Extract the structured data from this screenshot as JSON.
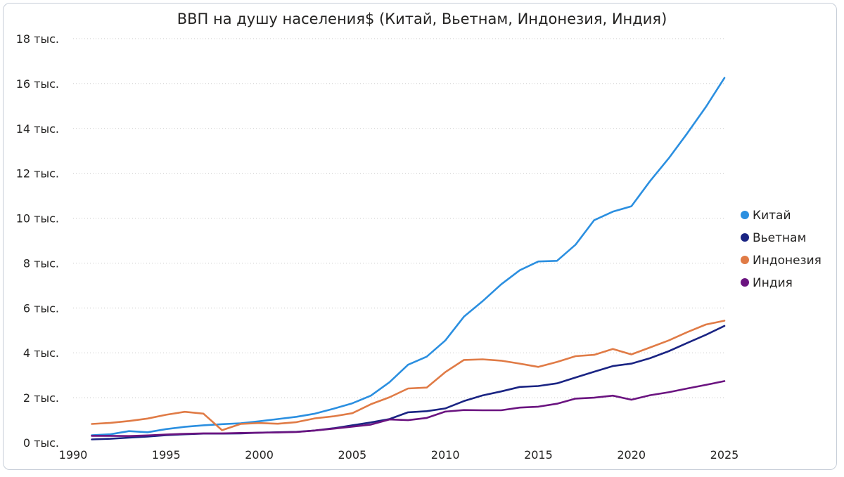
{
  "chart_data": {
    "type": "line",
    "title": "ВВП на душу населения$ (Китай, Вьетнам, Индонезия, Индия)",
    "xlabel": "",
    "ylabel": "",
    "xlim": [
      1990,
      2025
    ],
    "ylim": [
      0,
      18000
    ],
    "x_ticks": [
      "1990",
      "1995",
      "2000",
      "2005",
      "2010",
      "2015",
      "2020",
      "2025"
    ],
    "y_ticks": [
      "0 тыс.",
      "2 тыс.",
      "4 тыс.",
      "6 тыс.",
      "8 тыс.",
      "10 тыс.",
      "12 тыс.",
      "14 тыс.",
      "16 тыс.",
      "18 тыс."
    ],
    "grid": "horizontal dotted",
    "legend_position": "right",
    "x": [
      1991,
      1992,
      1993,
      1994,
      1995,
      1996,
      1997,
      1998,
      1999,
      2000,
      2001,
      2002,
      2003,
      2004,
      2005,
      2006,
      2007,
      2008,
      2009,
      2010,
      2011,
      2012,
      2013,
      2014,
      2015,
      2016,
      2017,
      2018,
      2019,
      2020,
      2021,
      2022,
      2023,
      2024,
      2025
    ],
    "series": [
      {
        "name": "Китай",
        "color": "#2b8fe0",
        "values": [
          330,
          370,
          510,
          460,
          600,
          700,
          770,
          820,
          860,
          950,
          1050,
          1150,
          1290,
          1510,
          1750,
          2090,
          2690,
          3470,
          3830,
          4550,
          5610,
          6300,
          7050,
          7680,
          8070,
          8100,
          8820,
          9910,
          10290,
          10530,
          11650,
          12660,
          13780,
          14950,
          16250
        ]
      },
      {
        "name": "Вьетнам",
        "color": "#1a2483",
        "values": [
          140,
          170,
          220,
          270,
          330,
          370,
          400,
          400,
          410,
          440,
          460,
          480,
          540,
          640,
          770,
          900,
          1050,
          1350,
          1400,
          1520,
          1850,
          2100,
          2280,
          2480,
          2520,
          2640,
          2900,
          3160,
          3410,
          3520,
          3760,
          4070,
          4440,
          4800,
          5200
        ]
      },
      {
        "name": "Индонезия",
        "color": "#e07b46",
        "values": [
          830,
          880,
          960,
          1070,
          1240,
          1370,
          1290,
          550,
          830,
          870,
          840,
          910,
          1080,
          1170,
          1310,
          1710,
          2020,
          2410,
          2450,
          3140,
          3680,
          3710,
          3650,
          3520,
          3370,
          3590,
          3850,
          3910,
          4170,
          3930,
          4240,
          4550,
          4920,
          5260,
          5430
        ]
      },
      {
        "name": "Индия",
        "color": "#6b1480",
        "values": [
          300,
          300,
          290,
          320,
          360,
          390,
          410,
          410,
          430,
          440,
          450,
          470,
          540,
          620,
          710,
          800,
          1030,
          1000,
          1100,
          1380,
          1450,
          1440,
          1440,
          1560,
          1600,
          1730,
          1960,
          2000,
          2090,
          1910,
          2110,
          2240,
          2410,
          2570,
          2740
        ]
      }
    ]
  }
}
